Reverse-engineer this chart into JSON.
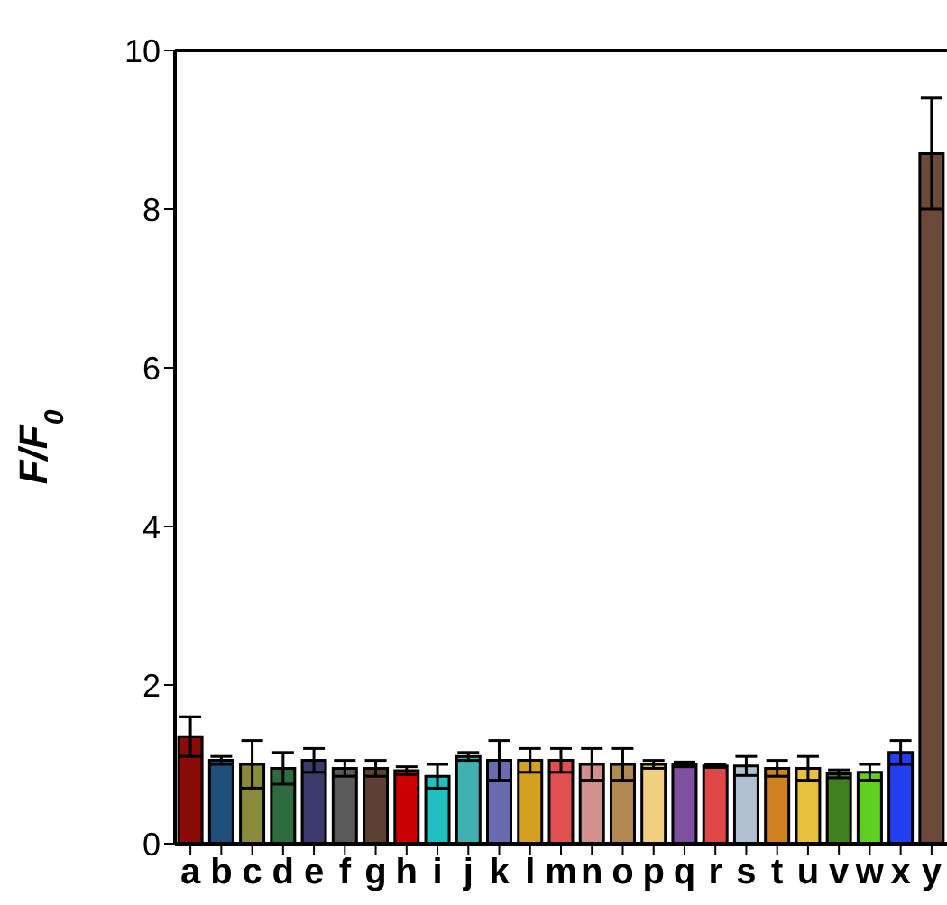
{
  "chart_data": {
    "type": "bar",
    "ylabel": "F/F$_{0}$",
    "categories": [
      "a",
      "b",
      "c",
      "d",
      "e",
      "f",
      "g",
      "h",
      "i",
      "j",
      "k",
      "l",
      "m",
      "n",
      "o",
      "p",
      "q",
      "r",
      "s",
      "t",
      "u",
      "v",
      "w",
      "x",
      "y"
    ],
    "values": [
      1.35,
      1.05,
      1.0,
      0.95,
      1.05,
      0.95,
      0.95,
      0.92,
      0.85,
      1.1,
      1.05,
      1.05,
      1.05,
      1.0,
      1.0,
      1.0,
      1.0,
      0.98,
      0.98,
      0.95,
      0.95,
      0.88,
      0.9,
      1.15,
      8.7
    ],
    "errors": [
      0.25,
      0.05,
      0.3,
      0.2,
      0.15,
      0.1,
      0.1,
      0.05,
      0.15,
      0.05,
      0.25,
      0.15,
      0.15,
      0.2,
      0.2,
      0.05,
      0.03,
      0.02,
      0.12,
      0.1,
      0.15,
      0.05,
      0.1,
      0.15,
      0.7
    ],
    "colors": [
      "#8b0a0a",
      "#1f4e79",
      "#8a8a3a",
      "#2e6b3e",
      "#3b3b6b",
      "#5a5a5a",
      "#5c4033",
      "#cc0000",
      "#20c0c0",
      "#40b0b0",
      "#6a6ab0",
      "#d4a020",
      "#e05050",
      "#d09090",
      "#b08850",
      "#f0d080",
      "#8050a0",
      "#e04848",
      "#b0c0d0",
      "#d08020",
      "#e8c040",
      "#408020",
      "#60d020",
      "#2040f0",
      "#6b4a3a"
    ],
    "ylim": [
      0,
      10
    ],
    "yticks": [
      0,
      2,
      4,
      6,
      8,
      10
    ],
    "grid": false,
    "legend": false
  }
}
